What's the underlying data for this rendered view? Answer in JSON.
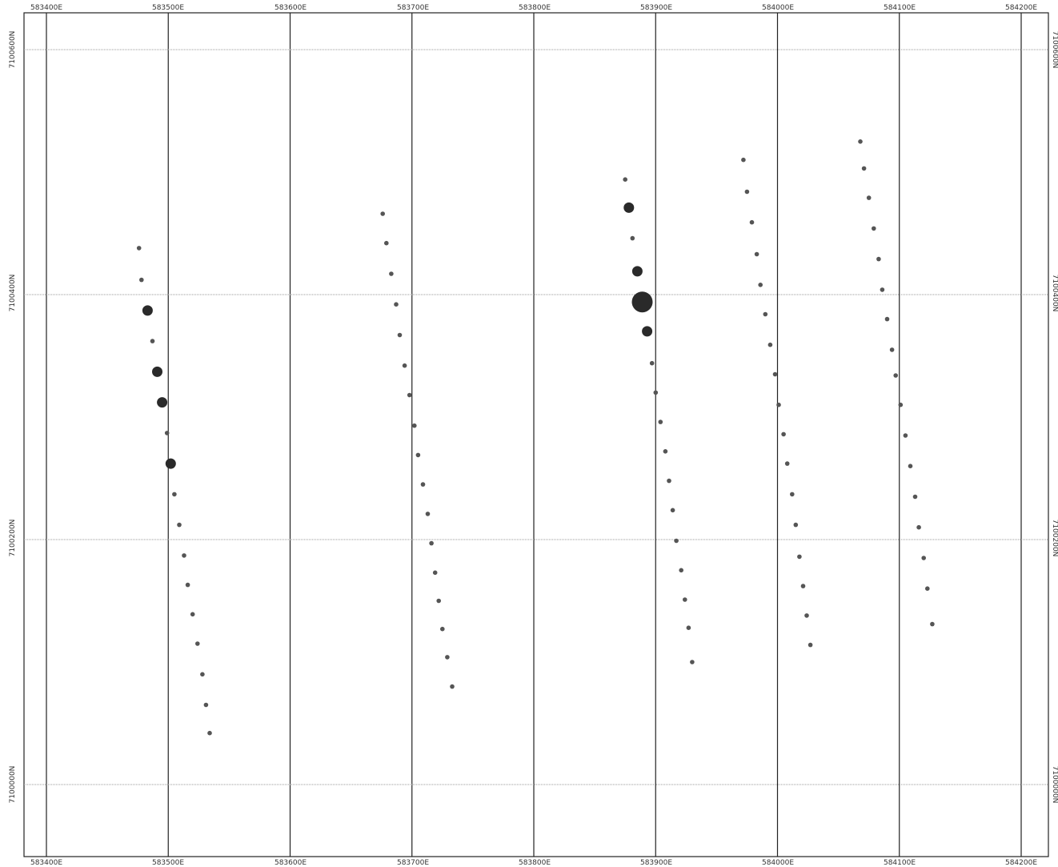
{
  "map": {
    "top_labels": [
      "583400E",
      "583500E",
      "583600E",
      "583700E",
      "583800E",
      "583900E",
      "584000E",
      "584100E",
      "584200E"
    ],
    "bottom_labels": [
      "583400E",
      "583500E",
      "583600E",
      "583700E",
      "583800E",
      "583900E",
      "584000E",
      "584100E",
      "584200E"
    ],
    "left_labels": [
      "7100600N",
      "7100400N",
      "7100200N",
      "7100000N"
    ],
    "right_labels": [
      "7100600N",
      "7100400N",
      "7100200N",
      "7100000N"
    ],
    "colors": {
      "grid": "#222222",
      "gridline_horizontal": "#9a9a9a",
      "point": "#555555",
      "point_large": "#2a2a2a",
      "text": "#333333"
    }
  },
  "chart_data": {
    "type": "scatter",
    "x_unit": "m easting",
    "y_unit": "m northing",
    "xlim": [
      583380,
      584210
    ],
    "ylim": [
      7099940,
      7100640
    ],
    "x_ticks": [
      583400,
      583500,
      583600,
      583700,
      583800,
      583900,
      584000,
      584100,
      584200
    ],
    "y_ticks": [
      7100000,
      7100200,
      7100400,
      7100600
    ],
    "grid": true,
    "series": [
      {
        "points": [
          {
            "x": 583476,
            "y": 7100438,
            "size": 1
          },
          {
            "x": 583478,
            "y": 7100412,
            "size": 1
          },
          {
            "x": 583483,
            "y": 7100387,
            "size": 3
          },
          {
            "x": 583487,
            "y": 7100362,
            "size": 1
          },
          {
            "x": 583491,
            "y": 7100337,
            "size": 3
          },
          {
            "x": 583495,
            "y": 7100312,
            "size": 3
          },
          {
            "x": 583499,
            "y": 7100287,
            "size": 1
          },
          {
            "x": 583502,
            "y": 7100262,
            "size": 3
          },
          {
            "x": 583505,
            "y": 7100237,
            "size": 1
          },
          {
            "x": 583509,
            "y": 7100212,
            "size": 1
          },
          {
            "x": 583513,
            "y": 7100187,
            "size": 1
          },
          {
            "x": 583516,
            "y": 7100163,
            "size": 1
          },
          {
            "x": 583520,
            "y": 7100139,
            "size": 1
          },
          {
            "x": 583524,
            "y": 7100115,
            "size": 1
          },
          {
            "x": 583528,
            "y": 7100090,
            "size": 1
          },
          {
            "x": 583531,
            "y": 7100065,
            "size": 1
          },
          {
            "x": 583534,
            "y": 7100042,
            "size": 1
          }
        ]
      },
      {
        "points": [
          {
            "x": 583676,
            "y": 7100466,
            "size": 1
          },
          {
            "x": 583679,
            "y": 7100442,
            "size": 1
          },
          {
            "x": 583683,
            "y": 7100417,
            "size": 1
          },
          {
            "x": 583687,
            "y": 7100392,
            "size": 1
          },
          {
            "x": 583690,
            "y": 7100367,
            "size": 1
          },
          {
            "x": 583694,
            "y": 7100342,
            "size": 1
          },
          {
            "x": 583698,
            "y": 7100318,
            "size": 1
          },
          {
            "x": 583702,
            "y": 7100293,
            "size": 1
          },
          {
            "x": 583705,
            "y": 7100269,
            "size": 1
          },
          {
            "x": 583709,
            "y": 7100245,
            "size": 1
          },
          {
            "x": 583713,
            "y": 7100221,
            "size": 1
          },
          {
            "x": 583716,
            "y": 7100197,
            "size": 1
          },
          {
            "x": 583719,
            "y": 7100173,
            "size": 1
          },
          {
            "x": 583722,
            "y": 7100150,
            "size": 1
          },
          {
            "x": 583725,
            "y": 7100127,
            "size": 1
          },
          {
            "x": 583729,
            "y": 7100104,
            "size": 1
          },
          {
            "x": 583733,
            "y": 7100080,
            "size": 1
          }
        ]
      },
      {
        "points": [
          {
            "x": 583875,
            "y": 7100494,
            "size": 1
          },
          {
            "x": 583878,
            "y": 7100471,
            "size": 3
          },
          {
            "x": 583881,
            "y": 7100446,
            "size": 1
          },
          {
            "x": 583885,
            "y": 7100419,
            "size": 3
          },
          {
            "x": 583889,
            "y": 7100394,
            "size": 5
          },
          {
            "x": 583893,
            "y": 7100370,
            "size": 3
          },
          {
            "x": 583897,
            "y": 7100344,
            "size": 1
          },
          {
            "x": 583900,
            "y": 7100320,
            "size": 1
          },
          {
            "x": 583904,
            "y": 7100296,
            "size": 1
          },
          {
            "x": 583908,
            "y": 7100272,
            "size": 1
          },
          {
            "x": 583911,
            "y": 7100248,
            "size": 1
          },
          {
            "x": 583914,
            "y": 7100224,
            "size": 1
          },
          {
            "x": 583917,
            "y": 7100199,
            "size": 1
          },
          {
            "x": 583921,
            "y": 7100175,
            "size": 1
          },
          {
            "x": 583924,
            "y": 7100151,
            "size": 1
          },
          {
            "x": 583927,
            "y": 7100128,
            "size": 1
          },
          {
            "x": 583930,
            "y": 7100100,
            "size": 1
          }
        ]
      },
      {
        "points": [
          {
            "x": 583972,
            "y": 7100510,
            "size": 1
          },
          {
            "x": 583975,
            "y": 7100484,
            "size": 1
          },
          {
            "x": 583979,
            "y": 7100459,
            "size": 1
          },
          {
            "x": 583983,
            "y": 7100433,
            "size": 1
          },
          {
            "x": 583986,
            "y": 7100408,
            "size": 1
          },
          {
            "x": 583990,
            "y": 7100384,
            "size": 1
          },
          {
            "x": 583994,
            "y": 7100359,
            "size": 1
          },
          {
            "x": 583998,
            "y": 7100335,
            "size": 1
          },
          {
            "x": 584001,
            "y": 7100310,
            "size": 1
          },
          {
            "x": 584005,
            "y": 7100286,
            "size": 1
          },
          {
            "x": 584008,
            "y": 7100262,
            "size": 1
          },
          {
            "x": 584012,
            "y": 7100237,
            "size": 1
          },
          {
            "x": 584015,
            "y": 7100212,
            "size": 1
          },
          {
            "x": 584018,
            "y": 7100186,
            "size": 1
          },
          {
            "x": 584021,
            "y": 7100162,
            "size": 1
          },
          {
            "x": 584024,
            "y": 7100138,
            "size": 1
          },
          {
            "x": 584027,
            "y": 7100114,
            "size": 1
          }
        ]
      },
      {
        "points": [
          {
            "x": 584068,
            "y": 7100525,
            "size": 1
          },
          {
            "x": 584071,
            "y": 7100503,
            "size": 1
          },
          {
            "x": 584075,
            "y": 7100479,
            "size": 1
          },
          {
            "x": 584079,
            "y": 7100454,
            "size": 1
          },
          {
            "x": 584083,
            "y": 7100429,
            "size": 1
          },
          {
            "x": 584086,
            "y": 7100404,
            "size": 1
          },
          {
            "x": 584090,
            "y": 7100380,
            "size": 1
          },
          {
            "x": 584094,
            "y": 7100355,
            "size": 1
          },
          {
            "x": 584097,
            "y": 7100334,
            "size": 1
          },
          {
            "x": 584101,
            "y": 7100310,
            "size": 1
          },
          {
            "x": 584105,
            "y": 7100285,
            "size": 1
          },
          {
            "x": 584109,
            "y": 7100260,
            "size": 1
          },
          {
            "x": 584113,
            "y": 7100235,
            "size": 1
          },
          {
            "x": 584116,
            "y": 7100210,
            "size": 1
          },
          {
            "x": 584120,
            "y": 7100185,
            "size": 1
          },
          {
            "x": 584123,
            "y": 7100160,
            "size": 1
          },
          {
            "x": 584127,
            "y": 7100131,
            "size": 1
          }
        ]
      }
    ]
  }
}
